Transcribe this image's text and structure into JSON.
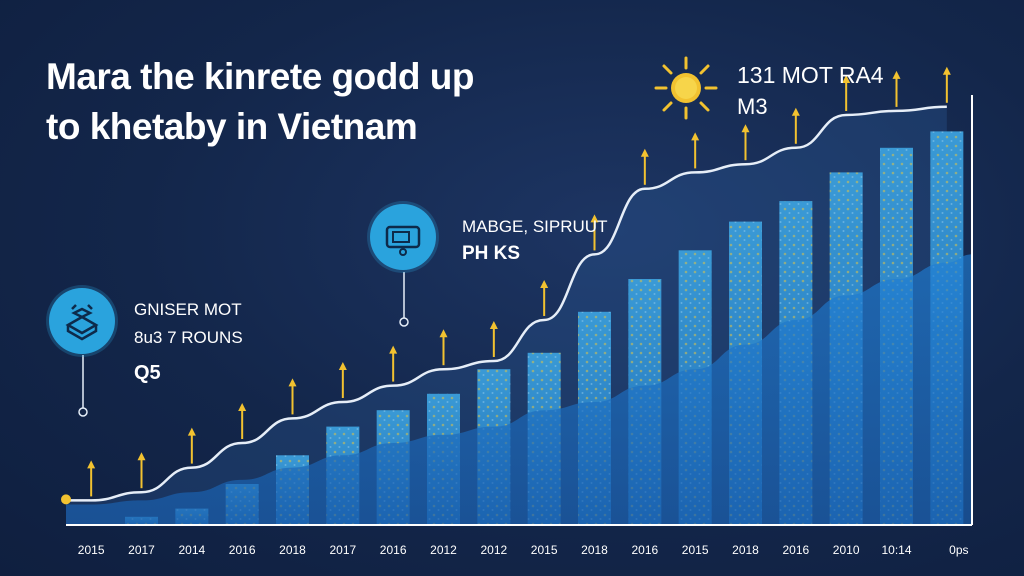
{
  "title": {
    "line1": "Mara the kinrete godd up",
    "line2": "to khetaby in Vietnam"
  },
  "callouts": [
    {
      "line1": "GNISER MOT",
      "line2": "8u3 7 ROUNS",
      "line3": "Q5",
      "icon": "boxes-icon"
    },
    {
      "line1": "MABGE, SIPRUUT",
      "line2": "PH KS",
      "icon": "ticket-icon"
    },
    {
      "line1": "131 MOT RA4",
      "line2": "M3",
      "icon": "sun-icon"
    }
  ],
  "colors": {
    "background": "#13264a",
    "bar": "#2f86cc",
    "accent": "#f2c230",
    "icon": "#2aa3dd"
  },
  "chart_data": {
    "type": "bar",
    "title": "Mara the kinrete godd up to khetaby in Vietnam",
    "xlabel": "",
    "ylabel": "",
    "ylim": [
      0,
      100
    ],
    "categories": [
      "2015",
      "2017",
      "2014",
      "2016",
      "2018",
      "2017",
      "2016",
      "2012",
      "2012",
      "2015",
      "2018",
      "2016",
      "2015",
      "2018",
      "2016",
      "2010",
      "10:14",
      "0ps"
    ],
    "values": [
      0,
      2,
      4,
      10,
      17,
      24,
      28,
      32,
      38,
      42,
      52,
      60,
      67,
      74,
      79,
      86,
      92,
      96
    ],
    "series": [
      {
        "name": "trend",
        "values": [
          6,
          8,
          14,
          20,
          26,
          30,
          34,
          38,
          40,
          50,
          66,
          82,
          86,
          88,
          92,
          100,
          101,
          102
        ]
      },
      {
        "name": "area",
        "values": [
          5,
          6,
          8,
          11,
          14,
          17,
          20,
          22,
          24,
          28,
          30,
          34,
          38,
          44,
          50,
          56,
          60,
          64
        ]
      }
    ]
  }
}
